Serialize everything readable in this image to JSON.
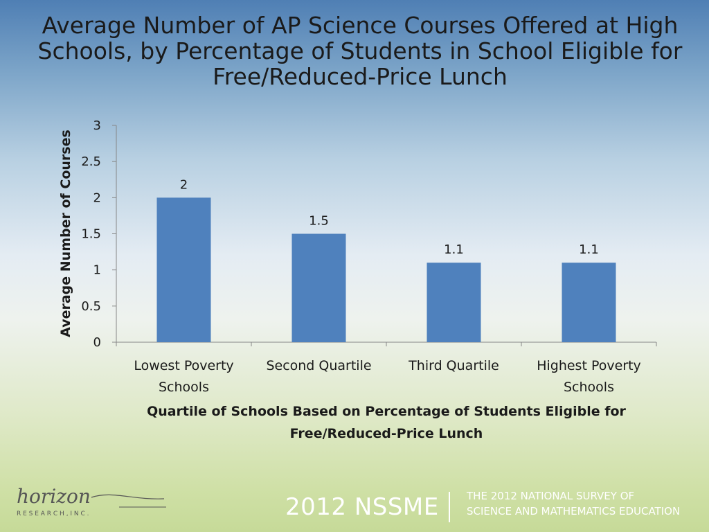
{
  "title_lines": [
    "Average Number of AP Science Courses Offered at High",
    "Schools, by Percentage of Students in School Eligible for",
    "Free/Reduced-Price Lunch"
  ],
  "chart_data": {
    "type": "bar",
    "categories": [
      [
        "Lowest Poverty",
        "Schools"
      ],
      [
        "Second Quartile"
      ],
      [
        "Third Quartile"
      ],
      [
        "Highest Poverty",
        "Schools"
      ]
    ],
    "values": [
      2,
      1.5,
      1.1,
      1.1
    ],
    "data_labels": [
      "2",
      "1.5",
      "1.1",
      "1.1"
    ],
    "ylabel": "Average Number of Courses",
    "xlabel_lines": [
      "Quartile of Schools Based on Percentage of Students Eligible for",
      "Free/Reduced-Price Lunch"
    ],
    "ylim": [
      0,
      3
    ],
    "yticks": [
      "0",
      "0.5",
      "1",
      "1.5",
      "2",
      "2.5",
      "3"
    ],
    "bar_color": "#4f81bd",
    "grid": false,
    "legend": "none"
  },
  "footer": {
    "logo_text": "horizon",
    "logo_subtext": "R E S E A R C H ,  I N C .",
    "event": "2012 NSSME",
    "survey_lines": [
      "THE 2012 NATIONAL SURVEY OF",
      "SCIENCE AND MATHEMATICS EDUCATION"
    ]
  }
}
